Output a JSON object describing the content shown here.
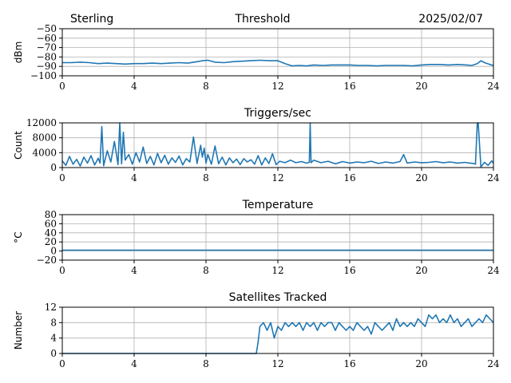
{
  "header": {
    "site": "Sterling",
    "title": "Threshold",
    "date": "2025/02/07"
  },
  "colors": {
    "series": "#1f77b4",
    "grid": "#b0b0b0"
  },
  "chart_data": [
    {
      "type": "line",
      "title": "",
      "xlabel": "",
      "ylabel": "dBm",
      "xlim": [
        0,
        24
      ],
      "ylim": [
        -100,
        -50
      ],
      "xticks": [
        0,
        4,
        8,
        12,
        16,
        20,
        24
      ],
      "yticks": [
        -100,
        -90,
        -80,
        -70,
        -60,
        -50
      ],
      "ytick_labels": [
        "−100",
        "−90",
        "−80",
        "−70",
        "−60",
        "−50"
      ],
      "grid": true,
      "series": [
        {
          "x": [
            0,
            0.5,
            1,
            1.5,
            2,
            2.5,
            3,
            3.5,
            4,
            4.5,
            5,
            5.5,
            6,
            6.5,
            7,
            7.5,
            7.8,
            8.1,
            8.5,
            9,
            9.5,
            10,
            10.5,
            11,
            11.5,
            12,
            12.4,
            12.8,
            13.2,
            13.6,
            14,
            14.5,
            15,
            15.5,
            16,
            16.5,
            17,
            17.5,
            18,
            18.5,
            19,
            19.5,
            20,
            20.5,
            21,
            21.5,
            22,
            22.5,
            22.8,
            23.1,
            23.3,
            23.5,
            23.8,
            24
          ],
          "values": [
            -86,
            -86,
            -85.5,
            -86,
            -87,
            -86.5,
            -87,
            -87.5,
            -87,
            -87,
            -86.5,
            -87,
            -86.5,
            -86,
            -86.5,
            -85,
            -84,
            -83.5,
            -85.5,
            -86,
            -85,
            -84.5,
            -84,
            -83.5,
            -84,
            -84,
            -87,
            -89.5,
            -89,
            -89.5,
            -88.5,
            -89,
            -88.5,
            -88.5,
            -88.5,
            -89,
            -89,
            -89.5,
            -89,
            -89,
            -89,
            -89.5,
            -88.5,
            -88,
            -88,
            -88.5,
            -88,
            -88.5,
            -89,
            -87,
            -84,
            -86,
            -88,
            -89
          ]
        }
      ]
    },
    {
      "type": "line",
      "title": "Triggers/sec",
      "xlabel": "",
      "ylabel": "Count",
      "xlim": [
        0,
        24
      ],
      "ylim": [
        0,
        12000
      ],
      "xticks": [
        0,
        4,
        8,
        12,
        16,
        20,
        24
      ],
      "yticks": [
        0,
        4000,
        8000,
        12000
      ],
      "ytick_labels": [
        "0",
        "4000",
        "8000",
        "12000"
      ],
      "grid": true,
      "series": [
        {
          "x": [
            0,
            0.2,
            0.4,
            0.6,
            0.8,
            1.0,
            1.2,
            1.4,
            1.6,
            1.8,
            2.0,
            2.1,
            2.2,
            2.3,
            2.5,
            2.7,
            2.9,
            3.1,
            3.2,
            3.3,
            3.4,
            3.5,
            3.7,
            3.9,
            4.1,
            4.3,
            4.5,
            4.7,
            4.9,
            5.1,
            5.3,
            5.5,
            5.7,
            5.9,
            6.1,
            6.3,
            6.5,
            6.7,
            6.9,
            7.1,
            7.3,
            7.5,
            7.7,
            7.8,
            7.9,
            8.0,
            8.1,
            8.3,
            8.5,
            8.7,
            8.9,
            9.1,
            9.3,
            9.5,
            9.7,
            9.9,
            10.1,
            10.3,
            10.5,
            10.7,
            10.9,
            11.1,
            11.3,
            11.5,
            11.7,
            11.9,
            12.1,
            12.4,
            12.7,
            13.0,
            13.3,
            13.6,
            13.75,
            13.8,
            13.85,
            14.0,
            14.4,
            14.8,
            15.2,
            15.6,
            16.0,
            16.4,
            16.8,
            17.2,
            17.6,
            18.0,
            18.4,
            18.8,
            19.0,
            19.2,
            19.6,
            20.0,
            20.4,
            20.8,
            21.2,
            21.6,
            22.0,
            22.4,
            22.7,
            22.9,
            23.0,
            23.1,
            23.15,
            23.3,
            23.5,
            23.7,
            23.9,
            24.0
          ],
          "values": [
            1800,
            600,
            3000,
            900,
            2200,
            400,
            2800,
            1200,
            3200,
            700,
            2500,
            1200,
            11000,
            500,
            4500,
            1500,
            7000,
            800,
            12000,
            1000,
            9500,
            2000,
            3500,
            900,
            4000,
            1500,
            5500,
            1100,
            3000,
            700,
            3800,
            1300,
            3300,
            900,
            2600,
            1400,
            3100,
            700,
            2400,
            1500,
            8200,
            1100,
            6000,
            2800,
            5200,
            1200,
            3500,
            900,
            5800,
            1000,
            2800,
            700,
            2600,
            1300,
            2300,
            800,
            2400,
            1500,
            2100,
            900,
            3200,
            700,
            2600,
            1100,
            3700,
            800,
            1700,
            1300,
            2000,
            1300,
            1600,
            1200,
            1400,
            12500,
            1300,
            2000,
            1300,
            1700,
            1000,
            1600,
            1200,
            1500,
            1300,
            1700,
            1100,
            1500,
            1200,
            1600,
            3500,
            1200,
            1500,
            1300,
            1400,
            1600,
            1300,
            1500,
            1200,
            1400,
            1200,
            1100,
            900,
            12600,
            12000,
            200,
            1400,
            600,
            1800,
            1200
          ]
        }
      ]
    },
    {
      "type": "line",
      "title": "Temperature",
      "xlabel": "",
      "ylabel": "°C",
      "xlim": [
        0,
        24
      ],
      "ylim": [
        -20,
        80
      ],
      "xticks": [
        0,
        4,
        8,
        12,
        16,
        20,
        24
      ],
      "yticks": [
        -20,
        0,
        20,
        40,
        60,
        80
      ],
      "ytick_labels": [
        "−20",
        "0",
        "20",
        "40",
        "60",
        "80"
      ],
      "grid": true,
      "series": [
        {
          "x": [
            0,
            24
          ],
          "values": [
            2,
            2
          ]
        }
      ]
    },
    {
      "type": "line",
      "title": "Satellites Tracked",
      "xlabel": "",
      "ylabel": "Number",
      "xlim": [
        0,
        24
      ],
      "ylim": [
        0,
        12
      ],
      "xticks": [
        0,
        4,
        8,
        12,
        16,
        20,
        24
      ],
      "yticks": [
        0,
        4,
        8,
        12
      ],
      "ytick_labels": [
        "0",
        "4",
        "8",
        "12"
      ],
      "grid": true,
      "series": [
        {
          "x": [
            0,
            10.8,
            10.9,
            11.0,
            11.2,
            11.4,
            11.6,
            11.8,
            12.0,
            12.2,
            12.4,
            12.6,
            12.8,
            13.0,
            13.2,
            13.4,
            13.6,
            13.8,
            14.0,
            14.2,
            14.4,
            14.6,
            14.8,
            15.0,
            15.2,
            15.4,
            15.6,
            15.8,
            16.0,
            16.2,
            16.4,
            16.6,
            16.8,
            17.0,
            17.2,
            17.4,
            17.6,
            17.8,
            18.0,
            18.2,
            18.4,
            18.6,
            18.8,
            19.0,
            19.2,
            19.4,
            19.6,
            19.8,
            20.0,
            20.2,
            20.4,
            20.6,
            20.8,
            21.0,
            21.2,
            21.4,
            21.6,
            21.8,
            22.0,
            22.2,
            22.4,
            22.6,
            22.8,
            23.0,
            23.2,
            23.4,
            23.6,
            23.8,
            24.0
          ],
          "values": [
            0,
            0,
            3,
            7,
            8,
            6,
            8,
            4,
            7,
            6,
            8,
            7,
            8,
            7,
            8,
            6,
            8,
            7,
            8,
            6,
            8,
            7,
            8,
            8,
            6,
            8,
            7,
            6,
            7,
            6,
            8,
            7,
            6,
            7,
            5,
            8,
            7,
            6,
            7,
            8,
            6,
            9,
            7,
            8,
            7,
            8,
            7,
            9,
            8,
            7,
            10,
            9,
            10,
            8,
            9,
            8,
            10,
            8,
            9,
            7,
            8,
            9,
            7,
            8,
            9,
            8,
            10,
            9,
            8
          ]
        }
      ]
    }
  ]
}
